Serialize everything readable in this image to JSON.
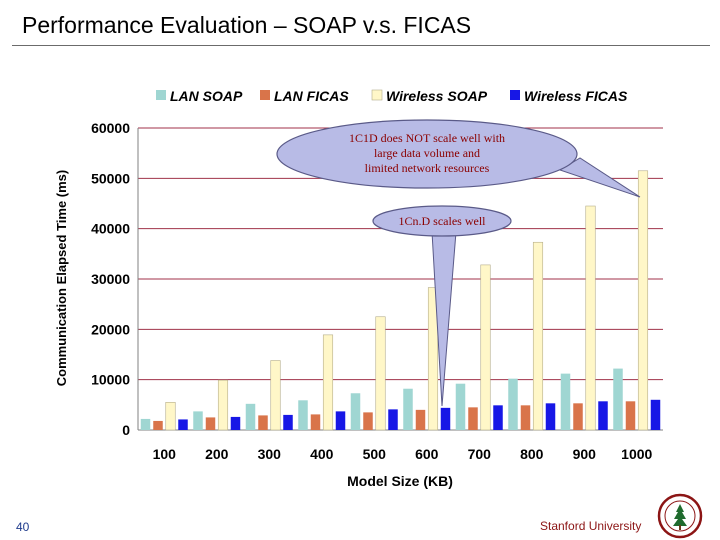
{
  "slide": {
    "title": "Performance Evaluation – SOAP v.s. FICAS",
    "page_number": "40",
    "institution": "Stanford University"
  },
  "colors": {
    "lan_soap": "#9fd6d2",
    "lan_ficas": "#d9744a",
    "wireless_soap": "#fff7c8",
    "wireless_ficas": "#1717e6",
    "gridline": "#a0324a",
    "callout_fill": "#b8bbe6",
    "callout_stroke": "#5a5a88",
    "axis_text": "#000000",
    "seal_red": "#8c1515"
  },
  "chart_data": {
    "type": "bar",
    "ylabel": "Communication Elapsed Time  (ms)",
    "xlabel": "Model Size (KB)",
    "ylim": [
      0,
      60000
    ],
    "yticks": [
      "0",
      "10000",
      "20000",
      "30000",
      "40000",
      "50000",
      "60000"
    ],
    "categories": [
      "100",
      "200",
      "300",
      "400",
      "500",
      "600",
      "700",
      "800",
      "900",
      "1000"
    ],
    "legend_position": "top",
    "series": [
      {
        "name": "LAN SOAP",
        "key": "lan_soap",
        "values": [
          2200,
          3700,
          5200,
          5900,
          7300,
          8200,
          9200,
          10200,
          11200,
          12200
        ]
      },
      {
        "name": "LAN FICAS",
        "key": "lan_ficas",
        "values": [
          1800,
          2500,
          2900,
          3100,
          3500,
          4000,
          4500,
          4900,
          5300,
          5700
        ]
      },
      {
        "name": "Wireless SOAP",
        "key": "wireless_soap",
        "values": [
          5500,
          9900,
          13800,
          18900,
          22500,
          28300,
          32800,
          37300,
          44500,
          51500
        ]
      },
      {
        "name": "Wireless FICAS",
        "key": "wireless_ficas",
        "values": [
          2100,
          2600,
          3000,
          3700,
          4100,
          4400,
          4900,
          5300,
          5700,
          6000
        ]
      }
    ],
    "annotations": [
      {
        "text": "1C1D does NOT scale well with large data volume and limited network resources",
        "lines": [
          "1C1D does NOT scale well with",
          "large data volume and",
          "limited network resources"
        ]
      },
      {
        "text": "1Cn.D scales well",
        "lines": [
          "1Cn.D scales well"
        ]
      }
    ]
  }
}
